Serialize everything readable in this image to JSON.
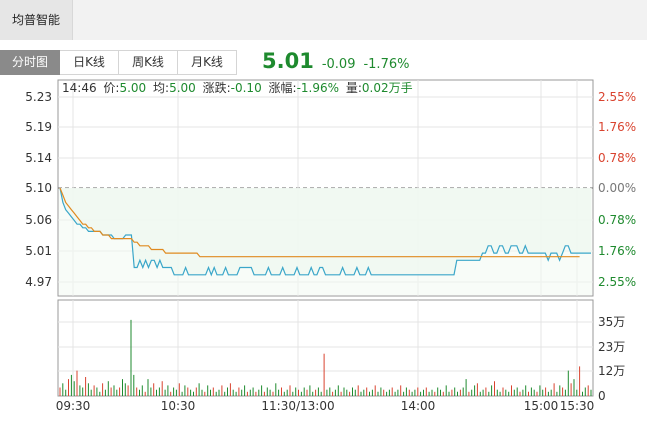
{
  "stock_name": "均普智能",
  "tabs": [
    "分时图",
    "日K线",
    "周K线",
    "月K线"
  ],
  "quote": {
    "price": "5.01",
    "change": "-0.09",
    "change_pct": "-1.76%"
  },
  "info_bar": {
    "time": "14:46",
    "price_label": "价:",
    "price": "5.00",
    "avg_label": "均:",
    "avg": "5.00",
    "change_label": "涨跌:",
    "change": "-0.10",
    "pct_label": "涨幅:",
    "pct": "-1.96%",
    "vol_label": "量:",
    "vol": "0.02万手"
  },
  "colors": {
    "price_line": "#3aa6c9",
    "avg_line": "#e08a20",
    "down": "#1e8a2e",
    "up": "#d9432f",
    "fill": "#eaf6ec"
  },
  "chart_data": {
    "type": "line",
    "title": "",
    "prev_close": 5.1,
    "y_ticks": [
      "5.23",
      "5.19",
      "5.14",
      "5.10",
      "5.06",
      "5.01",
      "4.97"
    ],
    "pct_ticks": [
      "2.55%",
      "1.76%",
      "0.78%",
      "0.00%",
      "0.78%",
      "1.76%",
      "2.55%"
    ],
    "x_ticks": [
      "09:30",
      "10:30",
      "11:30/13:00",
      "14:00",
      "15:00",
      "15:30"
    ],
    "ylim": [
      4.97,
      5.23
    ],
    "price_series": [
      5.1,
      5.08,
      5.07,
      5.065,
      5.06,
      5.055,
      5.05,
      5.05,
      5.045,
      5.045,
      5.04,
      5.04,
      5.04,
      5.04,
      5.04,
      5.035,
      5.035,
      5.035,
      5.035,
      5.03,
      5.03,
      5.03,
      5.03,
      5.035,
      5.035,
      5.035,
      4.99,
      4.99,
      5.0,
      4.99,
      5.0,
      4.99,
      5.0,
      5.0,
      4.99,
      5.0,
      4.99,
      4.99,
      4.99,
      4.99,
      4.98,
      4.98,
      4.98,
      4.98,
      4.99,
      4.98,
      4.98,
      4.98,
      4.98,
      4.98,
      4.98,
      4.98,
      4.99,
      4.98,
      4.99,
      4.98,
      4.98,
      4.98,
      4.99,
      4.98,
      4.98,
      4.98,
      4.98,
      4.99,
      4.99,
      4.99,
      4.99,
      4.99,
      4.98,
      4.98,
      4.98,
      4.98,
      4.98,
      4.99,
      4.98,
      4.98,
      4.98,
      4.98,
      4.99,
      4.98,
      4.98,
      4.98,
      4.98,
      4.99,
      4.98,
      4.98,
      4.98,
      4.98,
      4.99,
      4.98,
      4.98,
      4.99,
      4.99,
      4.98,
      4.98,
      4.98,
      4.98,
      4.98,
      4.98,
      4.99,
      4.98,
      4.98,
      4.98,
      4.98,
      4.99,
      4.98,
      4.98,
      4.98,
      4.99,
      4.98,
      4.98,
      4.98,
      4.98,
      4.98,
      4.98,
      4.98,
      4.98,
      4.98,
      4.98,
      4.98,
      4.98,
      4.98,
      4.98,
      4.98,
      4.98,
      4.98,
      4.98,
      4.98,
      4.98,
      4.98,
      4.98,
      4.98,
      4.98,
      4.98,
      4.98,
      4.98,
      4.98,
      4.98,
      4.98,
      5.0,
      5.0,
      5.0,
      5.0,
      5.0,
      5.0,
      5.0,
      5.0,
      5.0,
      5.01,
      5.01,
      5.02,
      5.02,
      5.01,
      5.01,
      5.02,
      5.02,
      5.01,
      5.01,
      5.02,
      5.02,
      5.02,
      5.01,
      5.01,
      5.02,
      5.01,
      5.01,
      5.01,
      5.01,
      5.01,
      5.01,
      5.01,
      5.0,
      5.01,
      5.01,
      5.01,
      5.0,
      5.01,
      5.02,
      5.02,
      5.01,
      5.01,
      5.01,
      5.01,
      5.01,
      5.01,
      5.01,
      5.01
    ],
    "avg_series": [
      5.1,
      5.09,
      5.08,
      5.075,
      5.07,
      5.065,
      5.06,
      5.055,
      5.05,
      5.05,
      5.045,
      5.045,
      5.04,
      5.04,
      5.04,
      5.035,
      5.035,
      5.035,
      5.03,
      5.03,
      5.03,
      5.03,
      5.03,
      5.03,
      5.03,
      5.03,
      5.025,
      5.025,
      5.02,
      5.02,
      5.02,
      5.02,
      5.015,
      5.015,
      5.015,
      5.015,
      5.015,
      5.01,
      5.01,
      5.01,
      5.01,
      5.01,
      5.01,
      5.01,
      5.01,
      5.01,
      5.01,
      5.01,
      5.01,
      5.005,
      5.005,
      5.005,
      5.005,
      5.005,
      5.005,
      5.005,
      5.005,
      5.005,
      5.005,
      5.005,
      5.005,
      5.005,
      5.005,
      5.005,
      5.005,
      5.005,
      5.005,
      5.005,
      5.005,
      5.005,
      5.005,
      5.005,
      5.005,
      5.005,
      5.005,
      5.005,
      5.005,
      5.005,
      5.005,
      5.005,
      5.005,
      5.005,
      5.005,
      5.005,
      5.005,
      5.005,
      5.005,
      5.005,
      5.005,
      5.005,
      5.005,
      5.005,
      5.005,
      5.005,
      5.005,
      5.005,
      5.005,
      5.005,
      5.005,
      5.005,
      5.005,
      5.005,
      5.005,
      5.005,
      5.005,
      5.005,
      5.005,
      5.005,
      5.005,
      5.005,
      5.005,
      5.005,
      5.005,
      5.005,
      5.005,
      5.005,
      5.005,
      5.005,
      5.005,
      5.005,
      5.005,
      5.005,
      5.005,
      5.005,
      5.005,
      5.005,
      5.005,
      5.005,
      5.005,
      5.005,
      5.005,
      5.005,
      5.005,
      5.005,
      5.005,
      5.005,
      5.005,
      5.005,
      5.005,
      5.005,
      5.005,
      5.005,
      5.005,
      5.005,
      5.005,
      5.005,
      5.005,
      5.005,
      5.005,
      5.005,
      5.005,
      5.005,
      5.005,
      5.005,
      5.005,
      5.005,
      5.005,
      5.005,
      5.005,
      5.005,
      5.005,
      5.005,
      5.005,
      5.005,
      5.005,
      5.005,
      5.005,
      5.005,
      5.005,
      5.005,
      5.005,
      5.005,
      5.005,
      5.005,
      5.005,
      5.005,
      5.005,
      5.005,
      5.005,
      5.005,
      5.005,
      5.005,
      5.005
    ],
    "volume_ticks": [
      "35万",
      "23万",
      "12万",
      "0"
    ],
    "volume_max": 35,
    "volume_series": [
      4,
      6,
      3,
      8,
      10,
      7,
      12,
      5,
      4,
      9,
      6,
      3,
      5,
      4,
      2,
      6,
      3,
      7,
      4,
      5,
      3,
      4,
      8,
      6,
      5,
      36,
      10,
      4,
      3,
      5,
      2,
      8,
      4,
      6,
      3,
      4,
      7,
      3,
      5,
      2,
      4,
      3,
      6,
      2,
      5,
      4,
      3,
      2,
      4,
      6,
      3,
      2,
      5,
      3,
      4,
      2,
      3,
      5,
      2,
      4,
      6,
      3,
      2,
      4,
      3,
      5,
      2,
      3,
      4,
      2,
      3,
      5,
      2,
      4,
      3,
      2,
      6,
      3,
      4,
      2,
      3,
      5,
      2,
      4,
      3,
      2,
      4,
      3,
      5,
      2,
      3,
      4,
      2,
      20,
      3,
      4,
      2,
      3,
      5,
      2,
      4,
      3,
      2,
      4,
      3,
      5,
      2,
      3,
      4,
      2,
      3,
      5,
      2,
      4,
      3,
      2,
      3,
      4,
      2,
      3,
      5,
      2,
      4,
      3,
      2,
      3,
      4,
      2,
      3,
      4,
      2,
      3,
      2,
      4,
      3,
      2,
      5,
      2,
      3,
      4,
      2,
      3,
      4,
      8,
      2,
      3,
      5,
      6,
      2,
      3,
      4,
      2,
      5,
      7,
      3,
      2,
      4,
      3,
      2,
      5,
      3,
      4,
      2,
      3,
      5,
      2,
      4,
      3,
      2,
      5,
      3,
      4,
      2,
      3,
      6,
      2,
      5,
      4,
      3,
      12,
      6,
      8,
      3,
      14,
      2,
      4,
      5,
      3
    ]
  }
}
